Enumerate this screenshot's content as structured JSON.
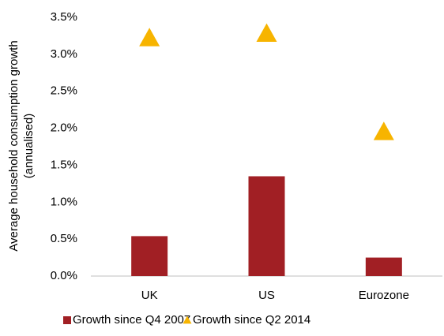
{
  "chart_data": {
    "type": "bar",
    "y_label": [
      "Average household consumption growth",
      "(annualised)"
    ],
    "categories": [
      "UK",
      "US",
      "Eurozone"
    ],
    "series": [
      {
        "name": "Growth since Q4 2007",
        "type": "bar",
        "color": "#a11f24",
        "values": [
          0.54,
          1.35,
          0.25
        ]
      },
      {
        "name": "Growth since Q2 2014",
        "type": "scatter",
        "marker": "triangle",
        "color": "#f7b400",
        "values": [
          3.22,
          3.28,
          1.95
        ]
      }
    ],
    "ylim": [
      0,
      3.5
    ],
    "yticks": [
      {
        "value": 0,
        "label": "0.0%"
      },
      {
        "value": 0.5,
        "label": "0.5%"
      },
      {
        "value": 1,
        "label": "1.0%"
      },
      {
        "value": 1.5,
        "label": "1.5%"
      },
      {
        "value": 2,
        "label": "2.0%"
      },
      {
        "value": 2.5,
        "label": "2.5%"
      },
      {
        "value": 3,
        "label": "3.0%"
      },
      {
        "value": 3.5,
        "label": "3.5%"
      }
    ],
    "grid": false,
    "legend": "bottom"
  }
}
